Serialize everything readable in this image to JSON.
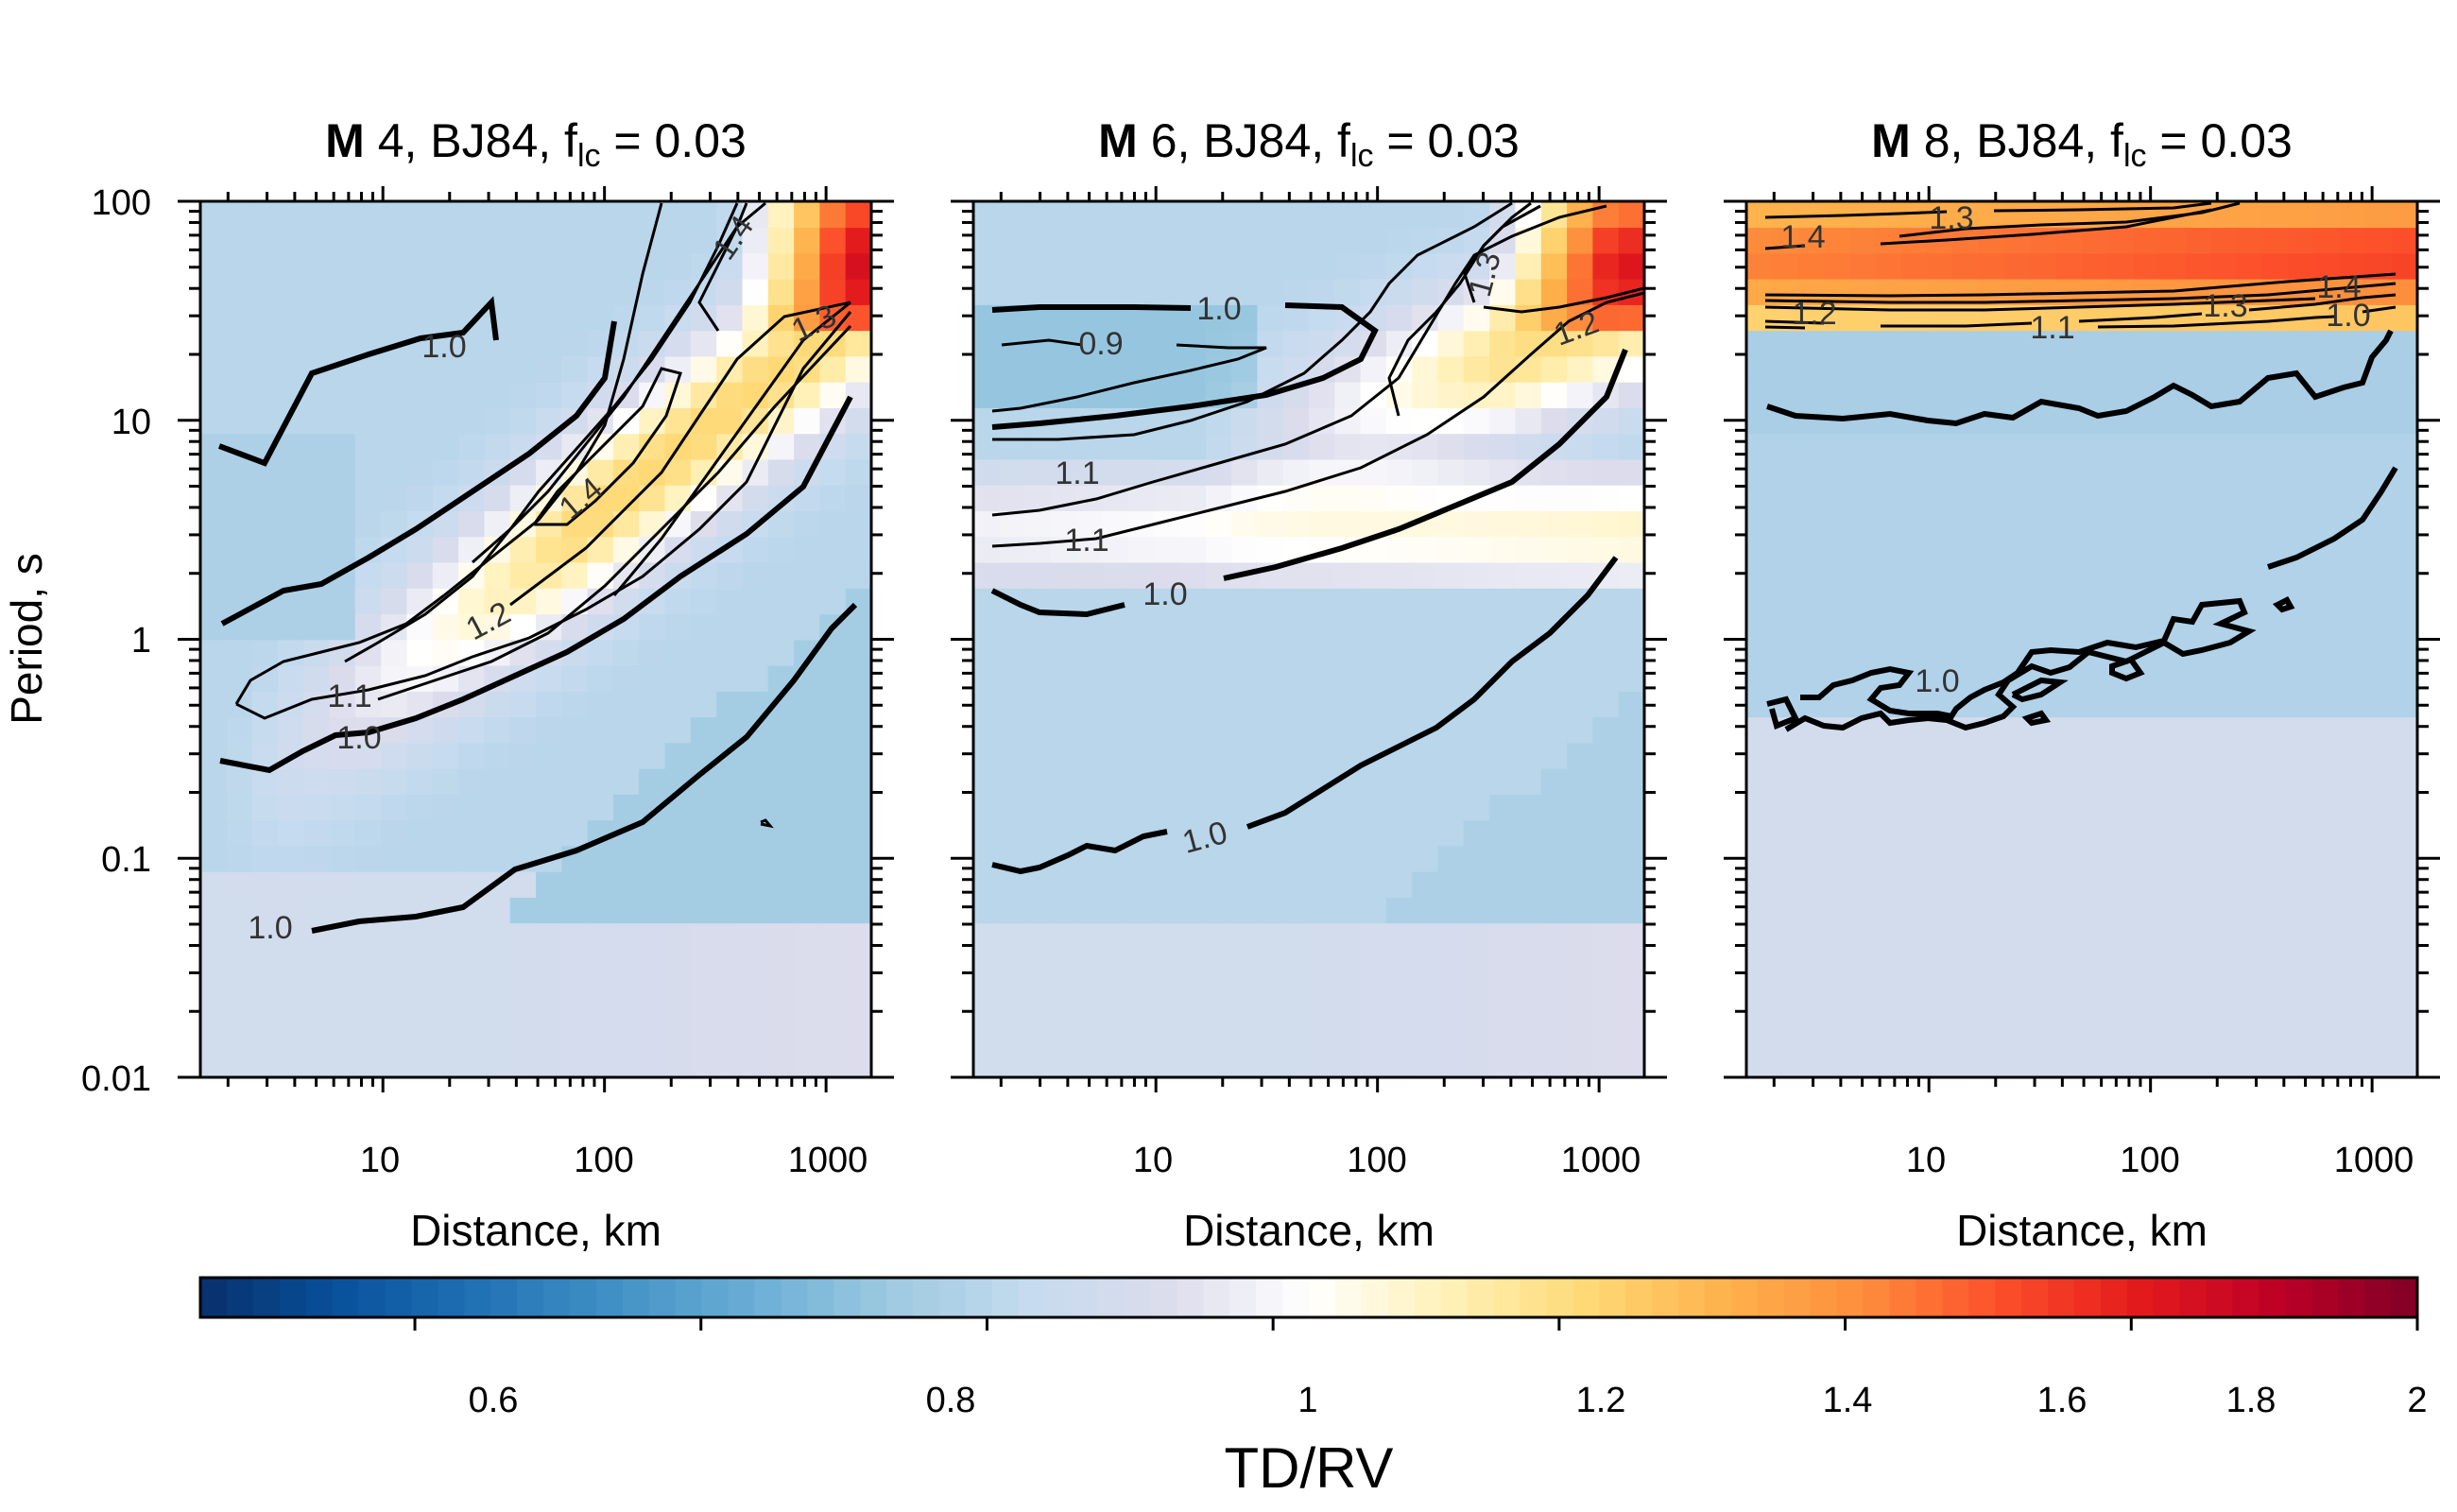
{
  "chart_data": {
    "type": "heatmap",
    "colorbar": {
      "title": "TD/RV",
      "min": 0.45,
      "max": 2.0,
      "ticks": [
        0.6,
        0.8,
        1,
        1.2,
        1.4,
        1.6,
        1.8,
        2
      ],
      "tick_labels": [
        "0.6",
        "0.8",
        "1",
        "1.2",
        "1.4",
        "1.6",
        "1.8",
        "2"
      ],
      "colormap": [
        "#08306b",
        "#08519c",
        "#2171b5",
        "#4292c6",
        "#6baed6",
        "#9ecae1",
        "#c6dbef",
        "#dcdcec",
        "#ffffff",
        "#fff1b8",
        "#fed976",
        "#feb24c",
        "#fd8d3c",
        "#fc4e2a",
        "#e31a1c",
        "#bd0026",
        "#800026"
      ]
    },
    "shared_axes": {
      "xlabel": "Distance, km",
      "ylabel": "Period, s",
      "xscale": "log",
      "yscale": "log",
      "xlim": [
        1.5,
        1600
      ],
      "ylim": [
        0.01,
        100
      ],
      "x_ticks": [
        10,
        100,
        1000
      ],
      "x_tick_labels": [
        "10",
        "100",
        "1000"
      ],
      "y_ticks": [
        0.01,
        0.1,
        1,
        10,
        100
      ],
      "y_tick_labels": [
        "0.01",
        "0.1",
        "1",
        "10",
        "100"
      ]
    },
    "panels": [
      {
        "title_bold": "M",
        "title_rest": " 4, BJ84, f",
        "title_sub": "lc",
        "title_end": " = 0.03",
        "contour_labels": [
          "1.0",
          "1.0",
          "1.0",
          "1.1",
          "1.2",
          "1.4",
          "1.4",
          "1.3"
        ]
      },
      {
        "title_bold": "M",
        "title_rest": " 6, BJ84, f",
        "title_sub": "lc",
        "title_end": " = 0.03",
        "contour_labels": [
          "1.0",
          "0.9",
          "1.1",
          "1.1",
          "1.0",
          "1.0",
          "1.3",
          "1.2"
        ]
      },
      {
        "title_bold": "M",
        "title_rest": " 8, BJ84, f",
        "title_sub": "lc",
        "title_end": " = 0.03",
        "contour_labels": [
          "1.3",
          "1.4",
          "1.2",
          "1.1",
          "1.3",
          "1.4",
          "1.0",
          "1.0"
        ]
      }
    ]
  }
}
